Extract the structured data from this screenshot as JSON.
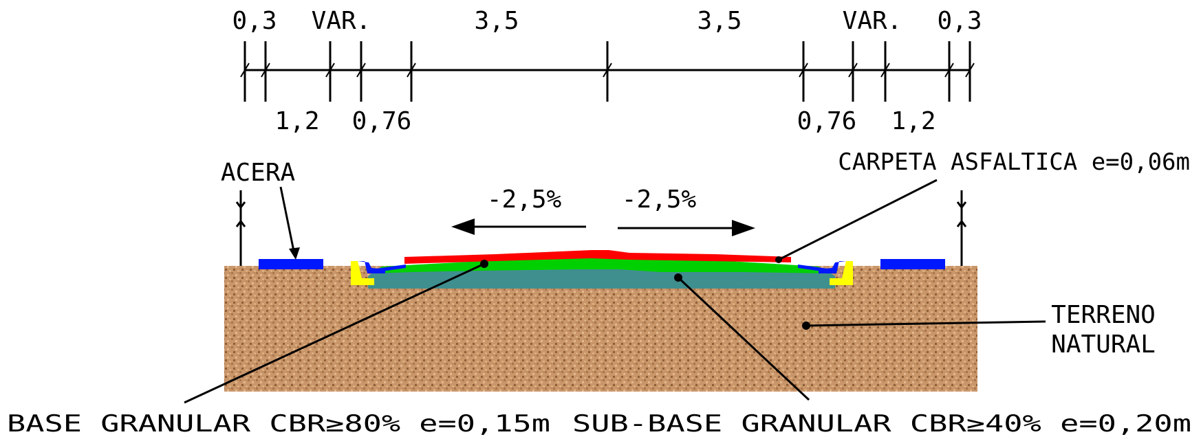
{
  "dimensions_top": [
    "0,3",
    "VAR.",
    "3,5",
    "3,5",
    "VAR.",
    "0,3"
  ],
  "dimensions_bottom": [
    "1,2",
    "0,76",
    "0,76",
    "1,2"
  ],
  "slopes": {
    "left": "-2,5%",
    "right": "-2,5%"
  },
  "labels": {
    "acera": "ACERA",
    "carpeta": "CARPETA ASFALTICA e=0,06m",
    "terreno_line1": "TERRENO",
    "terreno_line2": "NATURAL",
    "base": "BASE GRANULAR CBR≥80% e=0,15m",
    "subbase": "SUB-BASE GRANULAR CBR≥40% e=0,20m"
  },
  "colors": {
    "terrain": "#c9966a",
    "asphalt": "#ff0000",
    "base": "#00d000",
    "subbase": "#3f8f8f",
    "sidewalk": "#0018ff",
    "curb_fill": "#ffff00"
  }
}
